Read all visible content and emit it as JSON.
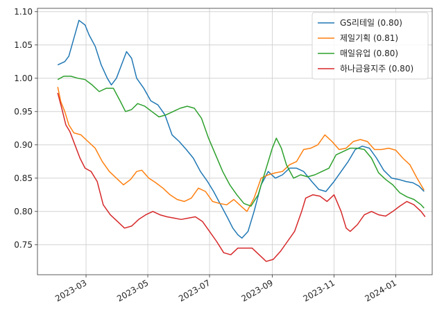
{
  "chart_data": {
    "type": "line",
    "title": "",
    "xlabel": "",
    "ylabel": "",
    "x_ticks": [
      "2023-03",
      "2023-05",
      "2023-07",
      "2023-09",
      "2023-11",
      "2024-01"
    ],
    "y_ticks": [
      "0.75",
      "0.80",
      "0.85",
      "0.90",
      "0.95",
      "1.00",
      "1.05",
      "1.10"
    ],
    "ylim": [
      0.705,
      1.105
    ],
    "xlim": [
      "2023-01-12",
      "2024-02-06"
    ],
    "grid": true,
    "legend_position": "top-right",
    "series": [
      {
        "name": "GS리테일 (0.80)",
        "color": "#1f77b4",
        "points": [
          [
            "2023-02-01",
            1.02
          ],
          [
            "2023-02-08",
            1.025
          ],
          [
            "2023-02-12",
            1.033
          ],
          [
            "2023-02-17",
            1.06
          ],
          [
            "2023-02-22",
            1.087
          ],
          [
            "2023-02-28",
            1.08
          ],
          [
            "2023-03-04",
            1.065
          ],
          [
            "2023-03-10",
            1.048
          ],
          [
            "2023-03-16",
            1.02
          ],
          [
            "2023-03-22",
            1.0
          ],
          [
            "2023-03-26",
            0.99
          ],
          [
            "2023-03-31",
            1.0
          ],
          [
            "2023-04-05",
            1.02
          ],
          [
            "2023-04-10",
            1.04
          ],
          [
            "2023-04-15",
            1.03
          ],
          [
            "2023-04-20",
            1.0
          ],
          [
            "2023-04-27",
            0.985
          ],
          [
            "2023-05-04",
            0.966
          ],
          [
            "2023-05-11",
            0.96
          ],
          [
            "2023-05-18",
            0.945
          ],
          [
            "2023-05-25",
            0.915
          ],
          [
            "2023-06-01",
            0.905
          ],
          [
            "2023-06-08",
            0.893
          ],
          [
            "2023-06-15",
            0.88
          ],
          [
            "2023-06-22",
            0.86
          ],
          [
            "2023-06-29",
            0.845
          ],
          [
            "2023-07-05",
            0.83
          ],
          [
            "2023-07-12",
            0.81
          ],
          [
            "2023-07-19",
            0.79
          ],
          [
            "2023-07-24",
            0.775
          ],
          [
            "2023-07-29",
            0.765
          ],
          [
            "2023-08-02",
            0.76
          ],
          [
            "2023-08-08",
            0.77
          ],
          [
            "2023-08-14",
            0.8
          ],
          [
            "2023-08-21",
            0.84
          ],
          [
            "2023-08-28",
            0.86
          ],
          [
            "2023-09-04",
            0.85
          ],
          [
            "2023-09-11",
            0.855
          ],
          [
            "2023-09-18",
            0.865
          ],
          [
            "2023-09-25",
            0.865
          ],
          [
            "2023-10-02",
            0.86
          ],
          [
            "2023-10-10",
            0.845
          ],
          [
            "2023-10-17",
            0.833
          ],
          [
            "2023-10-24",
            0.83
          ],
          [
            "2023-11-01",
            0.845
          ],
          [
            "2023-11-08",
            0.86
          ],
          [
            "2023-11-15",
            0.875
          ],
          [
            "2023-11-22",
            0.893
          ],
          [
            "2023-11-29",
            0.898
          ],
          [
            "2023-12-06",
            0.895
          ],
          [
            "2023-12-13",
            0.88
          ],
          [
            "2023-12-20",
            0.862
          ],
          [
            "2023-12-28",
            0.85
          ],
          [
            "2024-01-04",
            0.848
          ],
          [
            "2024-01-11",
            0.845
          ],
          [
            "2024-01-18",
            0.843
          ],
          [
            "2024-01-24",
            0.838
          ],
          [
            "2024-01-29",
            0.83
          ]
        ]
      },
      {
        "name": "제일기획 (0.81)",
        "color": "#ff7f0e",
        "points": [
          [
            "2023-02-01",
            0.987
          ],
          [
            "2023-02-04",
            0.965
          ],
          [
            "2023-02-08",
            0.95
          ],
          [
            "2023-02-12",
            0.93
          ],
          [
            "2023-02-17",
            0.918
          ],
          [
            "2023-02-24",
            0.915
          ],
          [
            "2023-03-03",
            0.905
          ],
          [
            "2023-03-10",
            0.895
          ],
          [
            "2023-03-17",
            0.875
          ],
          [
            "2023-03-24",
            0.86
          ],
          [
            "2023-03-31",
            0.85
          ],
          [
            "2023-04-07",
            0.84
          ],
          [
            "2023-04-14",
            0.848
          ],
          [
            "2023-04-20",
            0.86
          ],
          [
            "2023-04-25",
            0.862
          ],
          [
            "2023-05-02",
            0.85
          ],
          [
            "2023-05-09",
            0.843
          ],
          [
            "2023-05-16",
            0.835
          ],
          [
            "2023-05-23",
            0.825
          ],
          [
            "2023-05-30",
            0.818
          ],
          [
            "2023-06-06",
            0.815
          ],
          [
            "2023-06-13",
            0.82
          ],
          [
            "2023-06-20",
            0.835
          ],
          [
            "2023-06-27",
            0.83
          ],
          [
            "2023-07-04",
            0.815
          ],
          [
            "2023-07-11",
            0.812
          ],
          [
            "2023-07-18",
            0.81
          ],
          [
            "2023-07-25",
            0.818
          ],
          [
            "2023-08-01",
            0.808
          ],
          [
            "2023-08-07",
            0.8
          ],
          [
            "2023-08-14",
            0.82
          ],
          [
            "2023-08-21",
            0.85
          ],
          [
            "2023-08-28",
            0.855
          ],
          [
            "2023-09-04",
            0.858
          ],
          [
            "2023-09-11",
            0.86
          ],
          [
            "2023-09-18",
            0.87
          ],
          [
            "2023-09-25",
            0.875
          ],
          [
            "2023-10-02",
            0.893
          ],
          [
            "2023-10-09",
            0.895
          ],
          [
            "2023-10-16",
            0.9
          ],
          [
            "2023-10-23",
            0.915
          ],
          [
            "2023-10-30",
            0.905
          ],
          [
            "2023-11-06",
            0.893
          ],
          [
            "2023-11-13",
            0.895
          ],
          [
            "2023-11-20",
            0.905
          ],
          [
            "2023-11-27",
            0.908
          ],
          [
            "2023-12-04",
            0.905
          ],
          [
            "2023-12-11",
            0.893
          ],
          [
            "2023-12-18",
            0.893
          ],
          [
            "2023-12-25",
            0.895
          ],
          [
            "2024-01-01",
            0.892
          ],
          [
            "2024-01-08",
            0.88
          ],
          [
            "2024-01-15",
            0.87
          ],
          [
            "2024-01-22",
            0.85
          ],
          [
            "2024-01-29",
            0.832
          ]
        ]
      },
      {
        "name": "매일유업 (0.80)",
        "color": "#2ca02c",
        "points": [
          [
            "2023-02-01",
            0.998
          ],
          [
            "2023-02-07",
            1.003
          ],
          [
            "2023-02-14",
            1.003
          ],
          [
            "2023-02-21",
            1.0
          ],
          [
            "2023-02-28",
            0.998
          ],
          [
            "2023-03-07",
            0.99
          ],
          [
            "2023-03-14",
            0.98
          ],
          [
            "2023-03-21",
            0.985
          ],
          [
            "2023-03-28",
            0.985
          ],
          [
            "2023-04-04",
            0.965
          ],
          [
            "2023-04-09",
            0.95
          ],
          [
            "2023-04-15",
            0.953
          ],
          [
            "2023-04-21",
            0.962
          ],
          [
            "2023-04-28",
            0.958
          ],
          [
            "2023-05-05",
            0.95
          ],
          [
            "2023-05-12",
            0.942
          ],
          [
            "2023-05-19",
            0.945
          ],
          [
            "2023-05-26",
            0.95
          ],
          [
            "2023-06-02",
            0.955
          ],
          [
            "2023-06-09",
            0.958
          ],
          [
            "2023-06-16",
            0.955
          ],
          [
            "2023-06-23",
            0.94
          ],
          [
            "2023-06-30",
            0.91
          ],
          [
            "2023-07-07",
            0.885
          ],
          [
            "2023-07-14",
            0.86
          ],
          [
            "2023-07-21",
            0.84
          ],
          [
            "2023-07-28",
            0.825
          ],
          [
            "2023-08-04",
            0.812
          ],
          [
            "2023-08-11",
            0.808
          ],
          [
            "2023-08-18",
            0.825
          ],
          [
            "2023-08-25",
            0.86
          ],
          [
            "2023-09-01",
            0.895
          ],
          [
            "2023-09-05",
            0.91
          ],
          [
            "2023-09-10",
            0.895
          ],
          [
            "2023-09-15",
            0.87
          ],
          [
            "2023-09-22",
            0.85
          ],
          [
            "2023-09-29",
            0.855
          ],
          [
            "2023-10-06",
            0.852
          ],
          [
            "2023-10-13",
            0.855
          ],
          [
            "2023-10-20",
            0.86
          ],
          [
            "2023-10-27",
            0.865
          ],
          [
            "2023-11-03",
            0.885
          ],
          [
            "2023-11-10",
            0.89
          ],
          [
            "2023-11-17",
            0.895
          ],
          [
            "2023-11-24",
            0.895
          ],
          [
            "2023-12-01",
            0.893
          ],
          [
            "2023-12-08",
            0.88
          ],
          [
            "2023-12-15",
            0.858
          ],
          [
            "2023-12-22",
            0.848
          ],
          [
            "2023-12-29",
            0.84
          ],
          [
            "2024-01-05",
            0.828
          ],
          [
            "2024-01-12",
            0.822
          ],
          [
            "2024-01-19",
            0.818
          ],
          [
            "2024-01-26",
            0.81
          ],
          [
            "2024-01-29",
            0.805
          ]
        ]
      },
      {
        "name": "하나금융지주 (0.80)",
        "color": "#d62728",
        "points": [
          [
            "2023-02-01",
            0.978
          ],
          [
            "2023-02-05",
            0.955
          ],
          [
            "2023-02-09",
            0.93
          ],
          [
            "2023-02-13",
            0.92
          ],
          [
            "2023-02-18",
            0.9
          ],
          [
            "2023-02-23",
            0.88
          ],
          [
            "2023-02-28",
            0.865
          ],
          [
            "2023-03-06",
            0.86
          ],
          [
            "2023-03-12",
            0.845
          ],
          [
            "2023-03-18",
            0.81
          ],
          [
            "2023-03-25",
            0.795
          ],
          [
            "2023-04-01",
            0.785
          ],
          [
            "2023-04-08",
            0.775
          ],
          [
            "2023-04-15",
            0.778
          ],
          [
            "2023-04-22",
            0.788
          ],
          [
            "2023-04-29",
            0.795
          ],
          [
            "2023-05-06",
            0.8
          ],
          [
            "2023-05-13",
            0.795
          ],
          [
            "2023-05-20",
            0.792
          ],
          [
            "2023-05-27",
            0.79
          ],
          [
            "2023-06-03",
            0.788
          ],
          [
            "2023-06-10",
            0.79
          ],
          [
            "2023-06-17",
            0.792
          ],
          [
            "2023-06-24",
            0.785
          ],
          [
            "2023-07-01",
            0.77
          ],
          [
            "2023-07-08",
            0.755
          ],
          [
            "2023-07-15",
            0.738
          ],
          [
            "2023-07-22",
            0.735
          ],
          [
            "2023-07-29",
            0.745
          ],
          [
            "2023-08-05",
            0.745
          ],
          [
            "2023-08-12",
            0.745
          ],
          [
            "2023-08-19",
            0.735
          ],
          [
            "2023-08-26",
            0.725
          ],
          [
            "2023-09-02",
            0.728
          ],
          [
            "2023-09-09",
            0.74
          ],
          [
            "2023-09-16",
            0.755
          ],
          [
            "2023-09-23",
            0.77
          ],
          [
            "2023-09-30",
            0.8
          ],
          [
            "2023-10-04",
            0.82
          ],
          [
            "2023-10-11",
            0.825
          ],
          [
            "2023-10-18",
            0.823
          ],
          [
            "2023-10-25",
            0.815
          ],
          [
            "2023-11-01",
            0.825
          ],
          [
            "2023-11-08",
            0.8
          ],
          [
            "2023-11-13",
            0.775
          ],
          [
            "2023-11-17",
            0.77
          ],
          [
            "2023-11-24",
            0.78
          ],
          [
            "2023-12-01",
            0.795
          ],
          [
            "2023-12-08",
            0.8
          ],
          [
            "2023-12-15",
            0.795
          ],
          [
            "2023-12-22",
            0.793
          ],
          [
            "2023-12-29",
            0.8
          ],
          [
            "2024-01-05",
            0.808
          ],
          [
            "2024-01-12",
            0.815
          ],
          [
            "2024-01-19",
            0.81
          ],
          [
            "2024-01-26",
            0.8
          ],
          [
            "2024-01-30",
            0.792
          ]
        ]
      }
    ]
  }
}
